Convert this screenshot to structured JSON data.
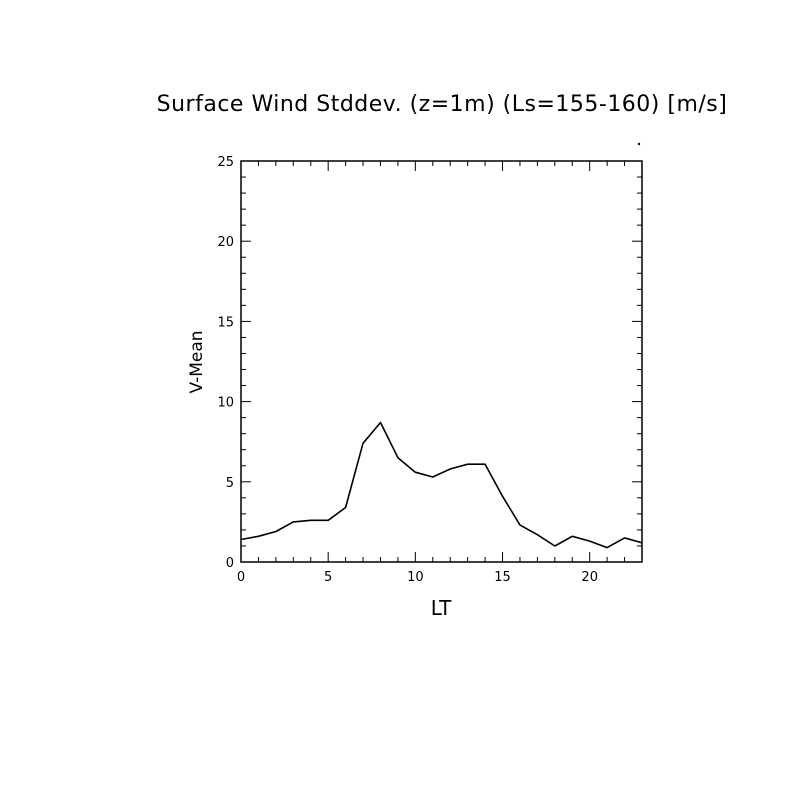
{
  "chart_data": {
    "type": "line",
    "title": "Surface Wind Stddev. (z=1m) (Ls=155-160) [m/s]",
    "xlabel": "LT",
    "ylabel": "V-Mean",
    "xlim": [
      0,
      23
    ],
    "ylim": [
      0,
      25
    ],
    "x_ticks_major": [
      0,
      5,
      10,
      15,
      20
    ],
    "x_ticks_minor_step": 1,
    "y_ticks_major": [
      0,
      5,
      10,
      15,
      20,
      25
    ],
    "y_ticks_minor_step": 1,
    "grid": false,
    "series": [
      {
        "x": [
          0,
          1,
          2,
          3,
          4,
          5,
          6,
          7,
          8,
          9,
          10,
          11,
          12,
          13,
          14,
          15,
          16,
          17,
          18,
          19,
          20,
          21,
          22,
          23
        ],
        "y": [
          1.4,
          1.6,
          1.9,
          2.5,
          2.6,
          2.6,
          3.4,
          7.4,
          8.7,
          6.5,
          5.6,
          5.3,
          5.8,
          6.1,
          6.1,
          4.1,
          2.3,
          1.7,
          1.0,
          1.6,
          1.3,
          0.9,
          1.5,
          1.2
        ]
      }
    ]
  }
}
